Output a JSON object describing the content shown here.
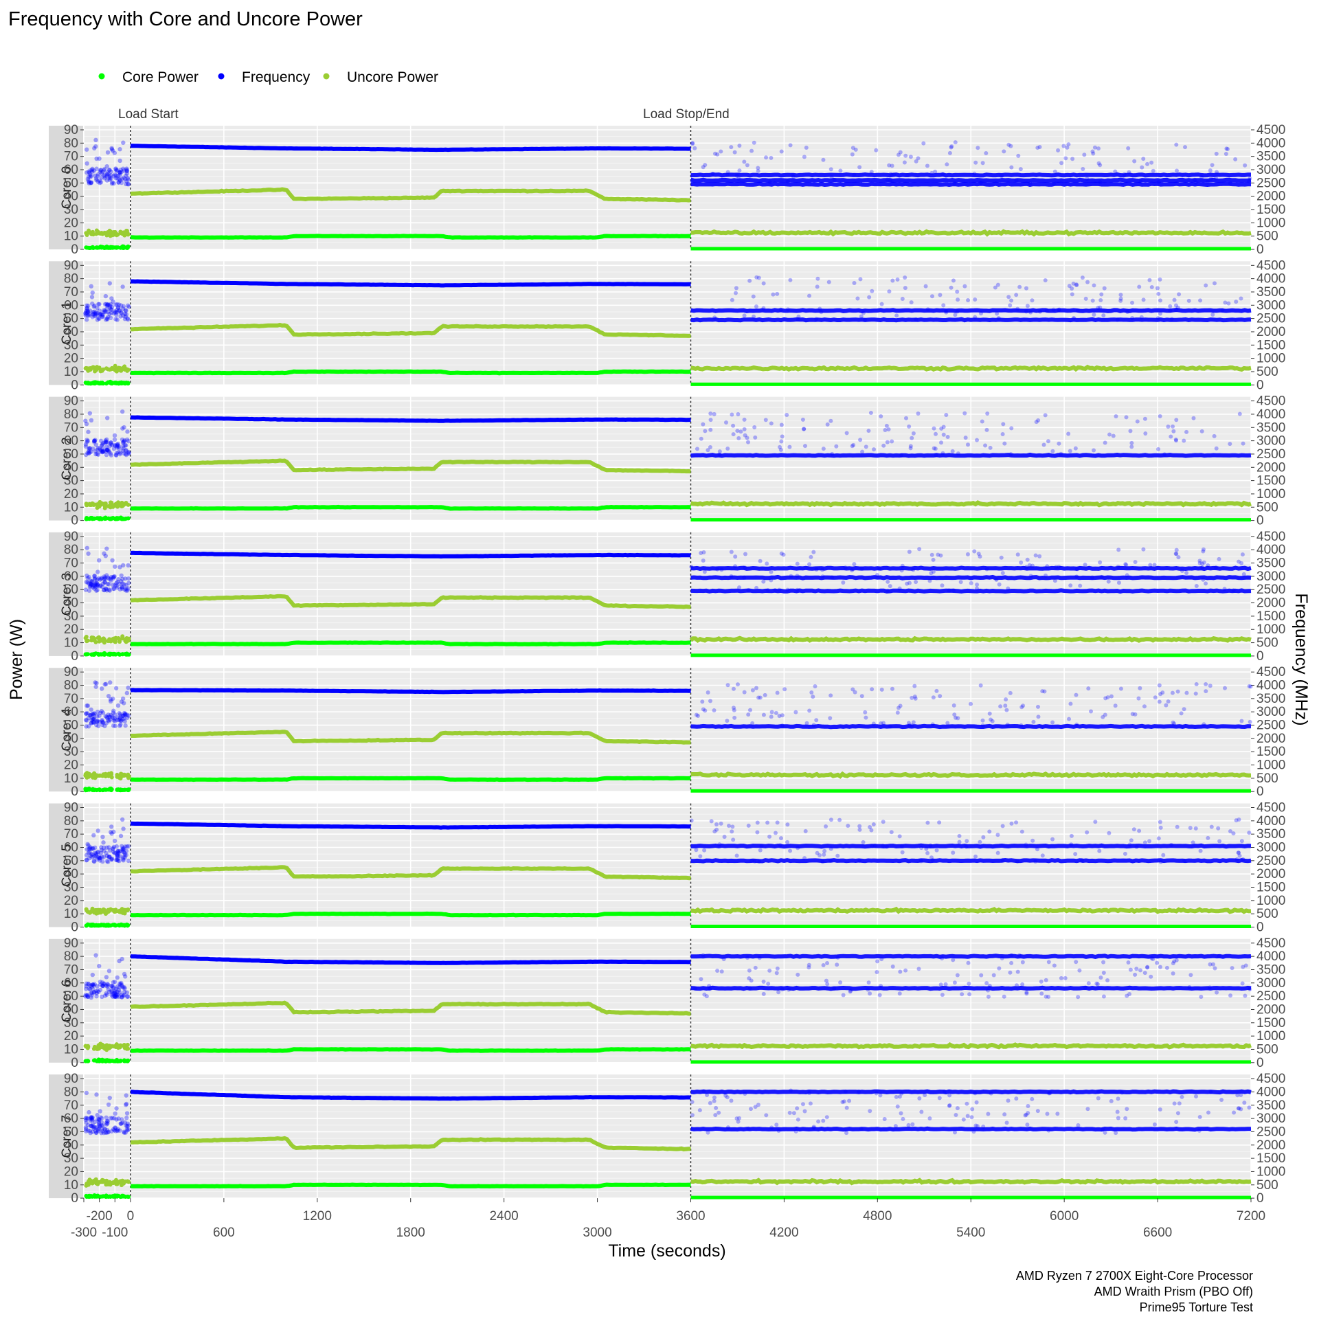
{
  "chart_data": {
    "type": "scatter",
    "title": "Frequency with Core and Uncore Power",
    "xlabel": "Time (seconds)",
    "ylabel_left": "Power (W)",
    "ylabel_right": "Frequency (MHz)",
    "x_ticks": [
      -300,
      -200,
      -100,
      0,
      600,
      1200,
      1800,
      2400,
      3000,
      3600,
      4200,
      4800,
      5400,
      6000,
      6600,
      7200
    ],
    "x_tick_labels": [
      "-300",
      "-200",
      "-100",
      "0",
      "600",
      "1200",
      "1800",
      "2400",
      "3000",
      "3600",
      "4200",
      "4800",
      "5400",
      "6000",
      "6600",
      "7200"
    ],
    "xlim": [
      -300,
      7200
    ],
    "y_left_ticks": [
      0,
      10,
      20,
      30,
      40,
      50,
      60,
      70,
      80,
      90
    ],
    "y_left_tick_labels": [
      "0",
      "10",
      "20",
      "30",
      "40",
      "50",
      "60",
      "70",
      "80",
      "90"
    ],
    "ylim_left": [
      0,
      90
    ],
    "y_right_ticks": [
      0,
      500,
      1000,
      1500,
      2000,
      2500,
      3000,
      3500,
      4000,
      4500
    ],
    "y_right_tick_labels": [
      "0",
      "500",
      "1000",
      "1500",
      "2000",
      "2500",
      "3000",
      "3500",
      "4000",
      "4500"
    ],
    "ylim_right": [
      0,
      4500
    ],
    "grid": true,
    "legend_position": "top-left",
    "legend": [
      {
        "name": "Core Power",
        "color": "#00ff00"
      },
      {
        "name": "Frequency",
        "color": "#0000ff"
      },
      {
        "name": "Uncore Power",
        "color": "#9acd32"
      }
    ],
    "annotations": [
      {
        "x": 0,
        "label": "Load Start"
      },
      {
        "x": 3600,
        "label": "Load Stop/End"
      }
    ],
    "caption": [
      "AMD Ryzen 7 2700X Eight-Core Processor",
      "AMD Wraith Prism (PBO Off)",
      "Prime95 Torture Test"
    ],
    "panels": [
      {
        "label": "Core: 0",
        "load_freq_start": 3900,
        "idle_freq_levels": [
          2450,
          2600,
          2800
        ]
      },
      {
        "label": "Core: 1",
        "load_freq_start": 3900,
        "idle_freq_levels": [
          2450,
          2800
        ]
      },
      {
        "label": "Core: 2",
        "load_freq_start": 3880,
        "idle_freq_levels": [
          2450
        ]
      },
      {
        "label": "Core: 3",
        "load_freq_start": 3880,
        "idle_freq_levels": [
          2450,
          2950,
          3300
        ]
      },
      {
        "label": "Core: 4",
        "load_freq_start": 3820,
        "idle_freq_levels": [
          2450
        ]
      },
      {
        "label": "Core: 5",
        "load_freq_start": 3900,
        "idle_freq_levels": [
          2500,
          3050
        ]
      },
      {
        "label": "Core: 6",
        "load_freq_start": 4000,
        "idle_freq_levels": [
          2800,
          4000
        ]
      },
      {
        "label": "Core: 7",
        "load_freq_start": 4000,
        "idle_freq_levels": [
          2600,
          4000
        ]
      }
    ],
    "series": [
      {
        "name": "Frequency",
        "axis": "right",
        "load_profile": [
          [
            0,
            3900
          ],
          [
            1000,
            3800
          ],
          [
            2000,
            3750
          ],
          [
            3000,
            3800
          ],
          [
            3600,
            3790
          ]
        ],
        "idle_note": "scattered 2400-4200 MHz"
      },
      {
        "name": "Uncore Power",
        "axis": "left",
        "load_profile": [
          [
            0,
            42
          ],
          [
            1000,
            45
          ],
          [
            1050,
            38
          ],
          [
            1950,
            39
          ],
          [
            2000,
            44
          ],
          [
            2950,
            44
          ],
          [
            3050,
            38
          ],
          [
            3600,
            37
          ]
        ],
        "idle_level": 12
      },
      {
        "name": "Core Power",
        "axis": "left",
        "load_profile": [
          [
            0,
            9
          ],
          [
            1000,
            9
          ],
          [
            1050,
            10
          ],
          [
            2000,
            10
          ],
          [
            2050,
            9
          ],
          [
            3000,
            9
          ],
          [
            3050,
            10
          ],
          [
            3600,
            10
          ]
        ],
        "idle_level": 0.5
      }
    ]
  }
}
